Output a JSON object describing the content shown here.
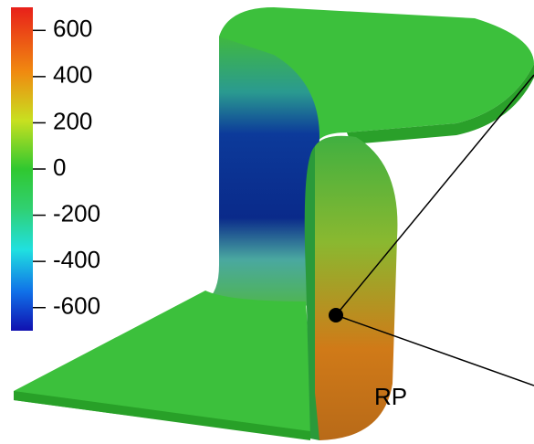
{
  "colorbar": {
    "lim": [
      -700,
      700
    ],
    "ticks": [
      600,
      400,
      200,
      0,
      -200,
      -400,
      -600
    ]
  },
  "label": "RP"
}
